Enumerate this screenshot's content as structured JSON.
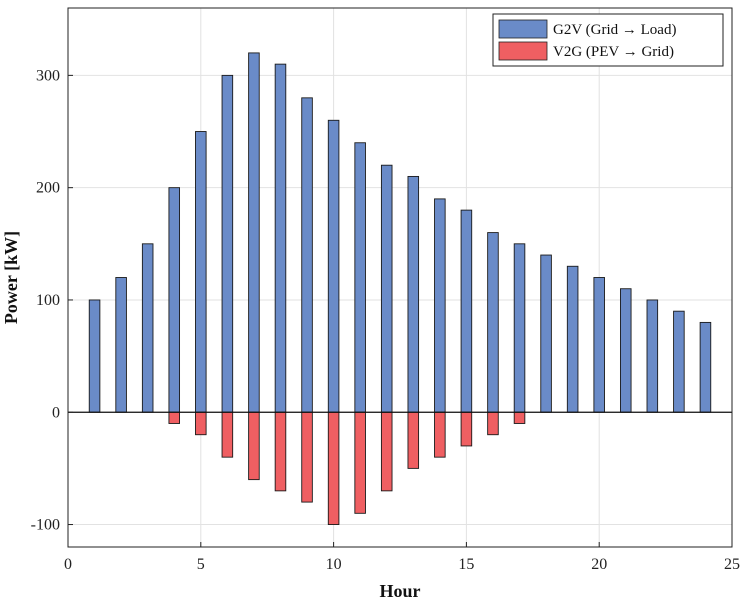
{
  "chart_data": {
    "type": "bar",
    "xlabel": "Hour",
    "ylabel": "Power [kW]",
    "xlim": [
      0,
      25
    ],
    "ylim": [
      -120,
      360
    ],
    "xticks": [
      0,
      5,
      10,
      15,
      20,
      25
    ],
    "yticks": [
      -100,
      0,
      100,
      200,
      300
    ],
    "grid": true,
    "legend_position": "top-right",
    "x": [
      1,
      2,
      3,
      4,
      5,
      6,
      7,
      8,
      9,
      10,
      11,
      12,
      13,
      14,
      15,
      16,
      17,
      18,
      19,
      20,
      21,
      22,
      23,
      24
    ],
    "series": [
      {
        "name": "G2V (Grid → Load)",
        "color": "#6a8bc8",
        "values": [
          100,
          120,
          150,
          200,
          250,
          300,
          320,
          310,
          280,
          260,
          240,
          220,
          210,
          190,
          180,
          160,
          150,
          140,
          130,
          120,
          110,
          100,
          90,
          80
        ]
      },
      {
        "name": "V2G (PEV → Grid)",
        "color": "#ef5f62",
        "values": [
          0,
          0,
          0,
          -10,
          -20,
          -40,
          -60,
          -70,
          -80,
          -100,
          -90,
          -70,
          -50,
          -40,
          -30,
          -20,
          -10,
          0,
          0,
          0,
          0,
          0,
          0,
          0
        ]
      }
    ]
  }
}
